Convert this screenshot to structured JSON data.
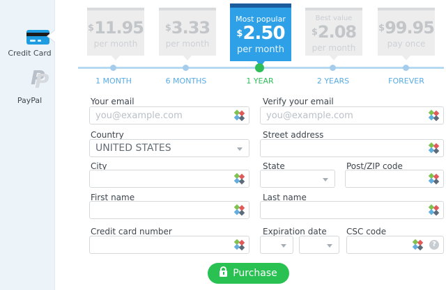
{
  "sidebar": {
    "items": [
      {
        "label": "Credit Card",
        "icon": "credit-card-icon",
        "selected": true
      },
      {
        "label": "PayPal",
        "icon": "paypal-icon",
        "selected": false
      }
    ]
  },
  "pricing": {
    "plans": [
      {
        "badge": "",
        "currency": "$",
        "price": "11.95",
        "period": "per month",
        "duration": "1 MONTH",
        "selected": false
      },
      {
        "badge": "",
        "currency": "$",
        "price": "3.33",
        "period": "per month",
        "duration": "6 MONTHS",
        "selected": false
      },
      {
        "badge": "Most popular",
        "currency": "$",
        "price": "2.50",
        "period": "per month",
        "duration": "1 YEAR",
        "selected": true
      },
      {
        "badge": "Best value",
        "currency": "$",
        "price": "2.08",
        "period": "per month",
        "duration": "2 YEARS",
        "selected": false
      },
      {
        "badge": "",
        "currency": "$",
        "price": "99.95",
        "period": "pay once",
        "duration": "FOREVER",
        "selected": false
      }
    ]
  },
  "form": {
    "email": {
      "label": "Your email",
      "placeholder": "you@example.com",
      "value": ""
    },
    "verify_email": {
      "label": "Verify your email",
      "placeholder": "you@example.com",
      "value": ""
    },
    "country": {
      "label": "Country",
      "value": "UNITED STATES"
    },
    "street": {
      "label": "Street address",
      "value": ""
    },
    "city": {
      "label": "City",
      "value": ""
    },
    "state": {
      "label": "State",
      "value": ""
    },
    "zip": {
      "label": "Post/ZIP code",
      "value": ""
    },
    "first_name": {
      "label": "First name",
      "value": ""
    },
    "last_name": {
      "label": "Last name",
      "value": ""
    },
    "card_number": {
      "label": "Credit card number",
      "value": ""
    },
    "expiration": {
      "label": "Expiration date",
      "month_value": "",
      "year_value": ""
    },
    "csc": {
      "label": "CSC code",
      "value": "",
      "help_glyph": "?"
    },
    "purchase_label": "Purchase"
  },
  "colors": {
    "accent_blue": "#2da0e8",
    "accent_blue_dark": "#1a5c9d",
    "accent_green": "#2ebd59",
    "button_green": "#29c252",
    "timeline_line": "#b6d9f2",
    "timeline_dot": "#a5cdeb",
    "timeline_label": "#58ace4",
    "sidebar_bg": "#edf4f9",
    "card_bg": "#ededee",
    "card_topbar": "#d8dadb",
    "card_text": "#c3c6c9",
    "input_border": "#d5d9dc",
    "diamond_green": "#7fc24f",
    "diamond_red": "#e05a5a",
    "diamond_blue": "#62ade0",
    "diamond_slate": "#5c6b7a"
  }
}
